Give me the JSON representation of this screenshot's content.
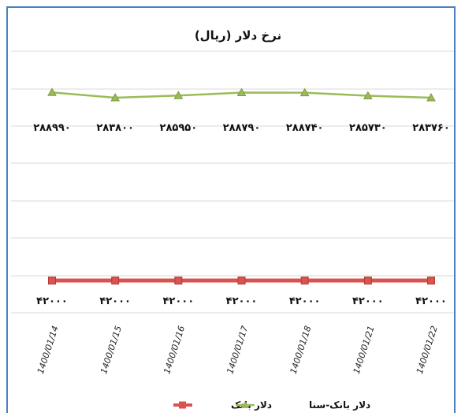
{
  "chart_data": {
    "type": "line",
    "title": "نرخ دلار (ریال)",
    "categories": [
      "1400/01/14",
      "1400/01/15",
      "1400/01/16",
      "1400/01/17",
      "1400/01/18",
      "1400/01/21",
      "1400/01/22"
    ],
    "series": [
      {
        "name": "دلار بانک",
        "values": [
          42000,
          42000,
          42000,
          42000,
          42000,
          42000,
          42000
        ],
        "labels": [
          "۴۲۰۰۰",
          "۴۲۰۰۰",
          "۴۲۰۰۰",
          "۴۲۰۰۰",
          "۴۲۰۰۰",
          "۴۲۰۰۰",
          "۴۲۰۰۰"
        ],
        "color": "#d9534f",
        "marker": "square"
      },
      {
        "name": "دلار بانک-سنا",
        "values": [
          288990,
          283800,
          285950,
          288790,
          288740,
          285730,
          283760
        ],
        "labels": [
          "۲۸۸۹۹۰",
          "۲۸۳۸۰۰",
          "۲۸۵۹۵۰",
          "۲۸۸۷۹۰",
          "۲۸۸۷۴۰",
          "۲۸۵۷۳۰",
          "۲۸۳۷۶۰"
        ],
        "color": "#9bbb59",
        "marker": "triangle"
      }
    ],
    "grid": true,
    "legend_position": "bottom"
  }
}
